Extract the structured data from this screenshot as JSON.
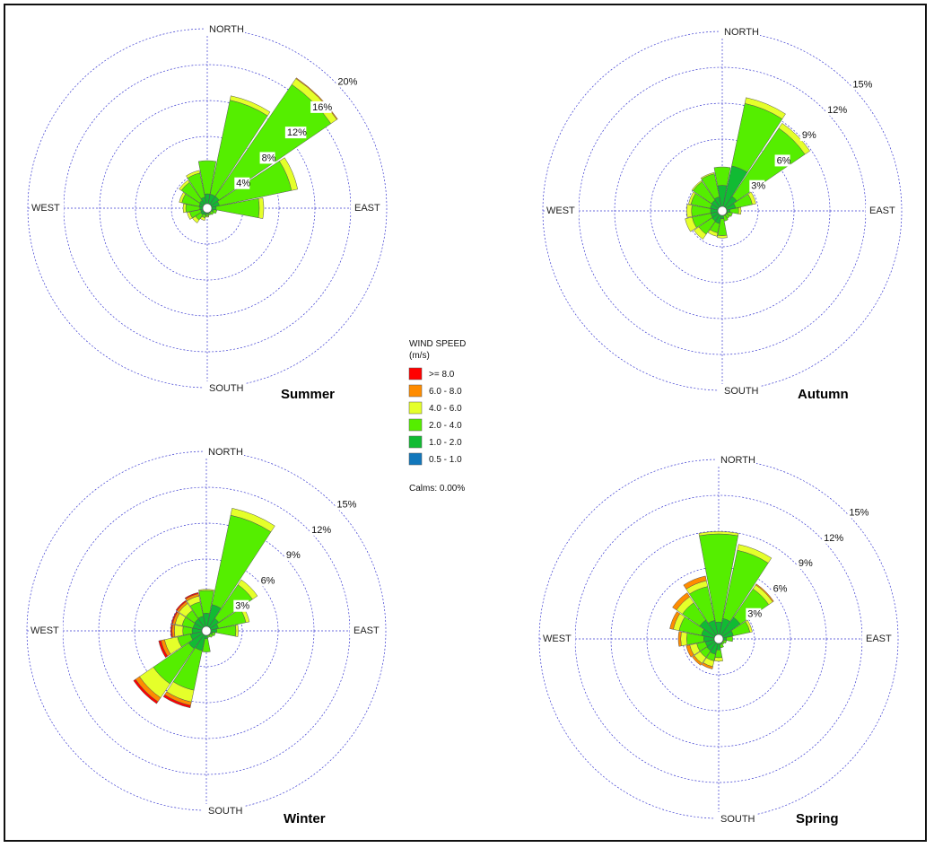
{
  "legend": {
    "title_line1": "WIND SPEED",
    "title_line2": "(m/s)",
    "bins": [
      {
        "label": ">= 8.0",
        "color": "#ff0000"
      },
      {
        "label": "6.0 - 8.0",
        "color": "#ff8c00"
      },
      {
        "label": "4.0 - 6.0",
        "color": "#e5ff2a"
      },
      {
        "label": "2.0 - 4.0",
        "color": "#55ee00"
      },
      {
        "label": "1.0 - 2.0",
        "color": "#11bb33"
      },
      {
        "label": "0.5 - 1.0",
        "color": "#1177bb"
      }
    ],
    "calms": "Calms: 0.00%"
  },
  "direction_labels": {
    "north": "NORTH",
    "south": "SOUTH",
    "east": "EAST",
    "west": "WEST"
  },
  "chart_data": [
    {
      "type": "windrose",
      "title": "Summer",
      "directions": [
        "N",
        "NNE",
        "NE",
        "ENE",
        "E",
        "ESE",
        "SE",
        "SSE",
        "S",
        "SSW",
        "SW",
        "WSW",
        "W",
        "WNW",
        "NW",
        "NNW"
      ],
      "ring_labels": [
        "4%",
        "8%",
        "12%",
        "16%",
        "20%"
      ],
      "ring_values": [
        4,
        8,
        12,
        16,
        20
      ],
      "max_value": 20,
      "sectors": [
        [
          0,
          0,
          0,
          0,
          2.0,
          4.8
        ],
        [
          0,
          0,
          0,
          0.5,
          2.0,
          12.3
        ],
        [
          0,
          0,
          0.1,
          0.8,
          2.0,
          17.1
        ],
        [
          0,
          0,
          0,
          0.7,
          1.6,
          9.8
        ],
        [
          0,
          0,
          0,
          0.5,
          0.9,
          5.8
        ],
        [
          0,
          0,
          0,
          0,
          0.4,
          0.6
        ],
        [
          0,
          0,
          0,
          0,
          0.1,
          0.4
        ],
        [
          0,
          0,
          0,
          0,
          0.2,
          0.3
        ],
        [
          0,
          0,
          0,
          0.1,
          0.3,
          0.5
        ],
        [
          0,
          0,
          0,
          0.3,
          0.5,
          0.9
        ],
        [
          0,
          0,
          0,
          0.4,
          0.7,
          1.5
        ],
        [
          0,
          0,
          0,
          0.3,
          0.5,
          1.8
        ],
        [
          0,
          0,
          0,
          0.3,
          0.6,
          2.2
        ],
        [
          0,
          0,
          0,
          0.3,
          0.8,
          2.7
        ],
        [
          0,
          0,
          0,
          0.3,
          1.0,
          3.3
        ],
        [
          0,
          0,
          0,
          0.3,
          1.4,
          3.8
        ]
      ]
    },
    {
      "type": "windrose",
      "title": "Autumn",
      "directions": [
        "N",
        "NNE",
        "NE",
        "ENE",
        "E",
        "ESE",
        "SE",
        "SSE",
        "S",
        "SSW",
        "SW",
        "WSW",
        "W",
        "WNW",
        "NW",
        "NNW"
      ],
      "ring_labels": [
        "3%",
        "6%",
        "9%",
        "12%",
        "15%"
      ],
      "ring_values": [
        3,
        6,
        9,
        12,
        15
      ],
      "max_value": 15,
      "sectors": [
        [
          0,
          0,
          0,
          0,
          3.2,
          3.3
        ],
        [
          0,
          0,
          0,
          0.5,
          6.3,
          9.3
        ],
        [
          0,
          0,
          0,
          0.5,
          2.0,
          8.5
        ],
        [
          0,
          0,
          0,
          0.3,
          1.4,
          2.5
        ],
        [
          0,
          0,
          0,
          0.2,
          0.5,
          1.2
        ],
        [
          0,
          0,
          0,
          0,
          0.2,
          0.5
        ],
        [
          0,
          0,
          0,
          0,
          0.1,
          0.4
        ],
        [
          0,
          0,
          0,
          0,
          0.1,
          0.5
        ],
        [
          0,
          0,
          0,
          0.2,
          0.5,
          1.9
        ],
        [
          0,
          0,
          0,
          0.3,
          1.3,
          1.8
        ],
        [
          0,
          0,
          0,
          0.5,
          1.2,
          2.5
        ],
        [
          0,
          0,
          0,
          0.6,
          1.1,
          2.8
        ],
        [
          0,
          0,
          0,
          0.4,
          1.1,
          2.6
        ],
        [
          0,
          0,
          0,
          0.2,
          1.2,
          2.5
        ],
        [
          0,
          0,
          0,
          0.1,
          1.3,
          2.7
        ],
        [
          0,
          0,
          0,
          0.1,
          1.5,
          2.9
        ]
      ]
    },
    {
      "type": "windrose",
      "title": "Winter",
      "directions": [
        "N",
        "NNE",
        "NE",
        "ENE",
        "E",
        "ESE",
        "SE",
        "SSE",
        "S",
        "SSW",
        "SW",
        "WSW",
        "W",
        "WNW",
        "NW",
        "NNW"
      ],
      "ring_labels": [
        "3%",
        "6%",
        "9%",
        "12%",
        "15%"
      ],
      "ring_values": [
        3,
        6,
        9,
        12,
        15
      ],
      "max_value": 15,
      "sectors": [
        [
          0,
          0,
          0,
          0.1,
          2.0,
          3.1
        ],
        [
          0,
          0,
          0,
          0.6,
          3.4,
          10.1
        ],
        [
          0,
          0,
          0,
          0.5,
          1.6,
          4.8
        ],
        [
          0,
          0,
          0,
          0.3,
          1.2,
          3.3
        ],
        [
          0,
          0,
          0,
          0.2,
          0.9,
          2.3
        ],
        [
          0,
          0,
          0,
          0,
          0.3,
          0.4
        ],
        [
          0,
          0,
          0,
          0,
          0.1,
          0.3
        ],
        [
          0,
          0,
          0,
          0,
          0.1,
          0.2
        ],
        [
          0,
          0,
          0,
          0,
          0.5,
          1.4
        ],
        [
          0,
          0.2,
          0.3,
          1.0,
          2.4,
          6.2
        ],
        [
          0,
          0.2,
          0.4,
          1.4,
          2.6,
          7.0
        ],
        [
          0,
          0.2,
          0.3,
          1.1,
          1.8,
          3.7
        ],
        [
          0,
          0.1,
          0.2,
          0.7,
          1.5,
          2.6
        ],
        [
          0,
          0.1,
          0.2,
          0.6,
          1.4,
          2.6
        ],
        [
          0,
          0.1,
          0.2,
          0.7,
          1.5,
          2.7
        ],
        [
          0,
          0.1,
          0.2,
          0.5,
          1.6,
          2.9
        ]
      ]
    },
    {
      "type": "windrose",
      "title": "Spring",
      "directions": [
        "N",
        "NNE",
        "NE",
        "ENE",
        "E",
        "ESE",
        "SE",
        "SSE",
        "S",
        "SSW",
        "SW",
        "WSW",
        "W",
        "WNW",
        "NW",
        "NNW"
      ],
      "ring_labels": [
        "3%",
        "6%",
        "9%",
        "12%",
        "15%"
      ],
      "ring_values": [
        3,
        6,
        9,
        12,
        15
      ],
      "max_value": 15,
      "sectors": [
        [
          0,
          0,
          0,
          0.2,
          1.9,
          8.6
        ],
        [
          0,
          0,
          0,
          0.5,
          2.5,
          7.7
        ],
        [
          0,
          0,
          0.1,
          0.4,
          3.3,
          5.2
        ],
        [
          0,
          0,
          0,
          0.2,
          1.6,
          2.5
        ],
        [
          0,
          0,
          0,
          0,
          0.5,
          0.8
        ],
        [
          0,
          0,
          0,
          0,
          0.1,
          0.3
        ],
        [
          0,
          0,
          0,
          0,
          0.1,
          0.2
        ],
        [
          0,
          0,
          0,
          0,
          0.2,
          0.4
        ],
        [
          0,
          0,
          0,
          0.3,
          1.0,
          1.5
        ],
        [
          0,
          0,
          0.2,
          0.5,
          1.7,
          2.2
        ],
        [
          0,
          0,
          0.2,
          0.6,
          1.5,
          2.3
        ],
        [
          0,
          0,
          0.3,
          0.6,
          1.4,
          2.4
        ],
        [
          0,
          0,
          0.2,
          0.5,
          1.6,
          3.0
        ],
        [
          0,
          0,
          0.3,
          0.5,
          2.0,
          3.8
        ],
        [
          0,
          0,
          0.4,
          0.6,
          2.8,
          4.3
        ],
        [
          0,
          0,
          0.4,
          0.5,
          2.2,
          5.0
        ]
      ]
    }
  ]
}
